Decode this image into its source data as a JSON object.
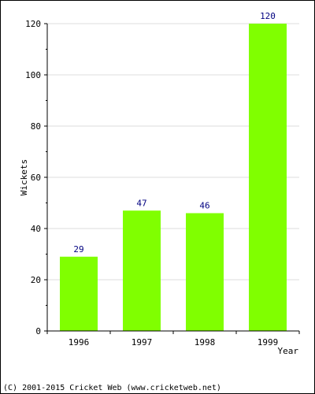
{
  "chart_data": {
    "type": "bar",
    "categories": [
      "1996",
      "1997",
      "1998",
      "1999"
    ],
    "values": [
      29,
      47,
      46,
      120
    ],
    "data_labels": [
      "29",
      "47",
      "46",
      "120"
    ],
    "title": "",
    "xlabel": "Year",
    "ylabel": "Wickets",
    "ylim": [
      0,
      120
    ],
    "yticks": [
      0,
      20,
      40,
      60,
      80,
      100,
      120
    ],
    "ytick_labels": [
      "0",
      "20",
      "40",
      "60",
      "80",
      "100",
      "120"
    ],
    "grid": true,
    "legend": "none",
    "bar_color": "#80ff00",
    "label_color": "#000080",
    "grid_color": "#dcdcdc"
  },
  "footer": {
    "text": "(C) 2001-2015 Cricket Web (www.cricketweb.net)"
  }
}
